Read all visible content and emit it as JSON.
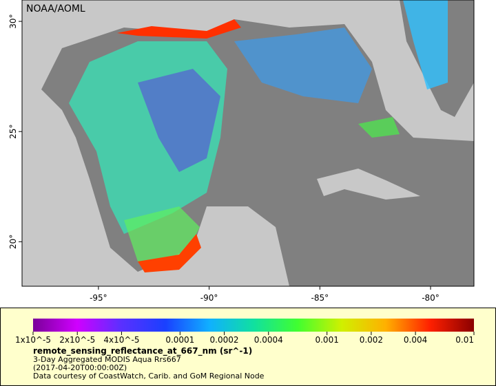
{
  "map": {
    "credit": "NOAA/AOML",
    "lon_range": [
      -98.45,
      -78.04
    ],
    "lat_range": [
      17.98,
      30.97
    ],
    "lon_ticks": [
      {
        "value": -95,
        "label": "-95°"
      },
      {
        "value": -90,
        "label": "-90°"
      },
      {
        "value": -85,
        "label": "-85°"
      },
      {
        "value": -80,
        "label": "-80°"
      }
    ],
    "lat_ticks": [
      {
        "value": 20,
        "label": "20°"
      },
      {
        "value": 25,
        "label": "25°"
      },
      {
        "value": 30,
        "label": "30°"
      }
    ]
  },
  "legend": {
    "colorbar": {
      "range": [
        1e-05,
        0.01
      ],
      "scale": "log",
      "ticks": [
        {
          "value": 1e-05,
          "label": "1x10^-5"
        },
        {
          "value": 2e-05,
          "label": "2x10^-5"
        },
        {
          "value": 4e-05,
          "label": "4x10^-5"
        },
        0.0001,
        0.0002,
        0.0004,
        0.001,
        0.002,
        0.004,
        0.01
      ]
    },
    "title": "remote_sensing_reflectance_at_667_nm (sr^-1)",
    "lines": [
      "3-Day Aggregated MODIS Aqua Rrs667",
      "(2017-04-20T00:00:00Z)",
      "Data courtesy of CoastWatch, Carib. and GoM Regional Node"
    ]
  }
}
